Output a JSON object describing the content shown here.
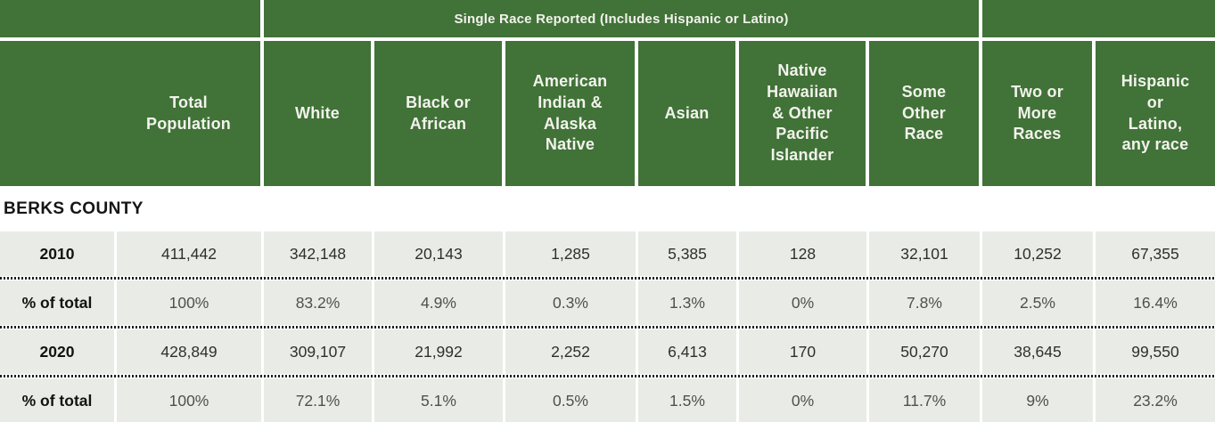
{
  "colors": {
    "header_green": "#417238",
    "header_text": "#F2F3EC",
    "row_bg": "#E9ECE6",
    "count_text": "#2F2F2D",
    "percent_text": "#50504B"
  },
  "chart_data": {
    "type": "table",
    "band_label": "Single Race Reported (Includes Hispanic or Latino)",
    "band_note": "band spans the six single-race columns: White through Some Other Race",
    "section": "BERKS COUNTY",
    "columns": [
      "Total\nPopulation",
      "White",
      "Black or\nAfrican",
      "American\nIndian &\nAlaska\nNative",
      "Asian",
      "Native\nHawaiian\n& Other\nPacific\nIslander",
      "Some\nOther\nRace",
      "Two or\nMore\nRaces",
      "Hispanic\nor\nLatino,\nany race"
    ],
    "rows": [
      {
        "label": "2010",
        "kind": "count",
        "values": [
          "411,442",
          "342,148",
          "20,143",
          "1,285",
          "5,385",
          "128",
          "32,101",
          "10,252",
          "67,355"
        ]
      },
      {
        "label": "% of total",
        "kind": "percent",
        "values": [
          "100%",
          "83.2%",
          "4.9%",
          "0.3%",
          "1.3%",
          "0%",
          "7.8%",
          "2.5%",
          "16.4%"
        ]
      },
      {
        "label": "2020",
        "kind": "count",
        "values": [
          "428,849",
          "309,107",
          "21,992",
          "2,252",
          "6,413",
          "170",
          "50,270",
          "38,645",
          "99,550"
        ]
      },
      {
        "label": "% of total",
        "kind": "percent",
        "values": [
          "100%",
          "72.1%",
          "5.1%",
          "0.5%",
          "1.5%",
          "0%",
          "11.7%",
          "9%",
          "23.2%"
        ]
      }
    ]
  }
}
